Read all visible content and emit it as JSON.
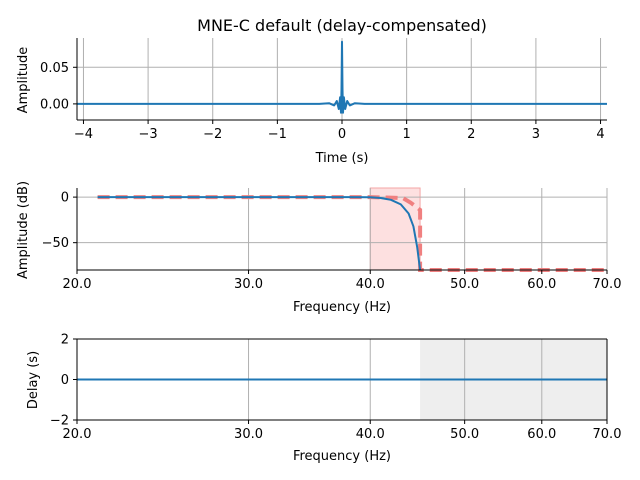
{
  "title": "MNE-C default (delay-compensated)",
  "colors": {
    "signal": "#1f77b4",
    "ideal": "#f08080",
    "band_fill": "#fde0e0",
    "band_edge": "#f4a6a6",
    "grey_fill": "#eeeeee",
    "grid": "#b0b0b0"
  },
  "chart_data": [
    {
      "type": "line",
      "title": "MNE-C default (delay-compensated)",
      "xlabel": "Time (s)",
      "ylabel": "Amplitude",
      "xlim": [
        -4.1,
        4.1
      ],
      "ylim": [
        -0.022,
        0.09
      ],
      "xticks": [
        -4,
        -3,
        -2,
        -1,
        0,
        1,
        2,
        3,
        4
      ],
      "xtick_labels": [
        "−4",
        "−3",
        "−2",
        "−1",
        "0",
        "1",
        "2",
        "3",
        "4"
      ],
      "yticks": [
        0.0,
        0.05
      ],
      "ytick_labels": [
        "0.00",
        "0.05"
      ],
      "grid": true,
      "series": [
        {
          "x": [
            -4.1,
            -0.35,
            -0.2,
            -0.12,
            -0.08,
            -0.05,
            -0.03,
            -0.015,
            -0.008,
            0,
            0.008,
            0.015,
            0.03,
            0.05,
            0.08,
            0.12,
            0.2,
            0.35,
            4.1
          ],
          "y": [
            0,
            0,
            0.001,
            -0.002,
            0.004,
            -0.007,
            0.009,
            -0.012,
            0.02,
            0.085,
            0.02,
            -0.012,
            0.009,
            -0.007,
            0.004,
            -0.002,
            0.001,
            0,
            0
          ]
        }
      ]
    },
    {
      "type": "line",
      "xlabel": "Frequency (Hz)",
      "ylabel": "Amplitude (dB)",
      "xscale": "log",
      "xlim": [
        20,
        70
      ],
      "ylim": [
        -80,
        10
      ],
      "xticks": [
        20,
        30,
        40,
        50,
        60,
        70
      ],
      "xtick_labels": [
        "20.0",
        "30.0",
        "40.0",
        "50.0",
        "60.0",
        "70.0"
      ],
      "yticks": [
        -50,
        0
      ],
      "ytick_labels": [
        "−50",
        "0"
      ],
      "grid": true,
      "shaded_band": [
        40,
        45
      ],
      "series": [
        {
          "x": [
            21,
            30,
            38,
            40,
            41,
            42,
            43,
            43.8,
            44.3,
            44.7,
            45
          ],
          "y": [
            0,
            0,
            0,
            -0.2,
            -1,
            -3,
            -8,
            -18,
            -32,
            -55,
            -80
          ]
        },
        {
          "x": [
            21,
            40,
            43.2,
            44,
            45,
            45,
            70
          ],
          "y": [
            0,
            0,
            -1,
            -6,
            -14,
            -80,
            -80
          ]
        }
      ]
    },
    {
      "type": "line",
      "xlabel": "Frequency (Hz)",
      "ylabel": "Delay (s)",
      "xscale": "log",
      "xlim": [
        20,
        70
      ],
      "ylim": [
        -2,
        2
      ],
      "xticks": [
        20,
        30,
        40,
        50,
        60,
        70
      ],
      "xtick_labels": [
        "20.0",
        "30.0",
        "40.0",
        "50.0",
        "60.0",
        "70.0"
      ],
      "yticks": [
        -2,
        0,
        2
      ],
      "ytick_labels": [
        "−2",
        "0",
        "2"
      ],
      "grid": true,
      "shaded_band": [
        45,
        70
      ],
      "series": [
        {
          "x": [
            20,
            70
          ],
          "y": [
            0,
            0
          ]
        }
      ]
    }
  ]
}
